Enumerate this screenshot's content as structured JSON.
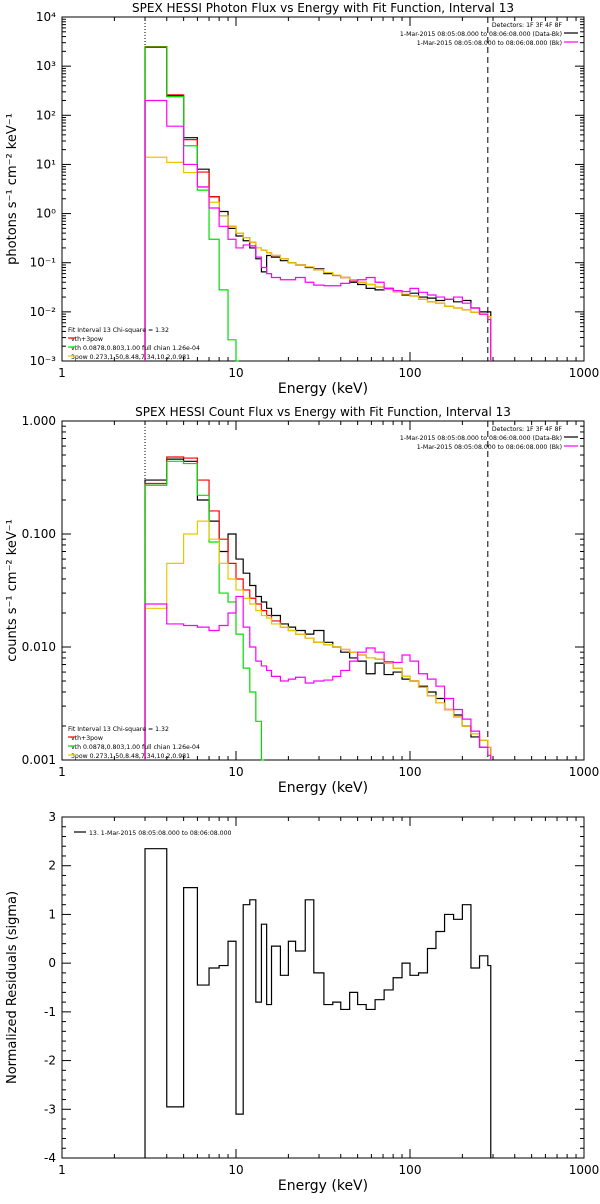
{
  "colors": {
    "observed": "#000000",
    "total_fit": "#ff0000",
    "thermal": "#00dd00",
    "nonthermal": "#e8c800",
    "background": "#ff00ff",
    "axes": "#000000"
  },
  "chart_data": [
    {
      "id": "photon",
      "type": "line",
      "step": true,
      "title": "SPEX HESSI Photon Flux vs Energy with Fit Function, Interval 13",
      "xlabel": "Energy (keV)",
      "ylabel": "photons s⁻¹ cm⁻² keV⁻¹",
      "xscale": "log",
      "yscale": "log",
      "xlim": [
        1,
        1000
      ],
      "ylim": [
        0.001,
        10000
      ],
      "xticks": [
        {
          "v": 1,
          "label": "1"
        },
        {
          "v": 10,
          "label": "10"
        },
        {
          "v": 100,
          "label": "100"
        },
        {
          "v": 1000,
          "label": "1000"
        }
      ],
      "yticks": [
        {
          "v": 0.001,
          "label": "10⁻³"
        },
        {
          "v": 0.01,
          "label": "10⁻²"
        },
        {
          "v": 0.1,
          "label": "10⁻¹"
        },
        {
          "v": 1,
          "label": "10⁰"
        },
        {
          "v": 10,
          "label": "10¹"
        },
        {
          "v": 100,
          "label": "10²"
        },
        {
          "v": 1000,
          "label": "10³"
        },
        {
          "v": 10000,
          "label": "10⁴"
        }
      ],
      "vlines": [
        {
          "x": 3,
          "style": "dotted"
        },
        {
          "x": 280,
          "style": "dashed"
        }
      ],
      "legend_topright": [
        "Detectors: 1F 3F 4F 8F",
        "1-Mar-2015 08:05:08.000 to 08:06:08.000 (Data-Bk)",
        "1-Mar-2015 08:05:08.000 to 08:06:08.000 (Bk)"
      ],
      "legend_topright_keys": [
        "",
        "observed",
        "background"
      ],
      "legend_bottomleft": [
        "Fit Interval 13   Chi-square = 1.32",
        "vth+3pow",
        "vth 0.0878,0.803,1.00  full chian 1.26e-04",
        "3pow 0.273,1.50,8.48,7.34,10.2,0.981"
      ],
      "legend_bottomleft_keys": [
        "",
        "total_fit",
        "thermal",
        "nonthermal"
      ],
      "series": [
        {
          "key": "observed",
          "x": [
            3,
            4,
            5,
            6,
            7,
            8,
            9,
            10,
            11,
            12,
            13,
            14,
            15,
            16,
            18,
            20,
            22,
            25,
            28,
            32,
            36,
            40,
            45,
            50,
            56,
            63,
            71,
            80,
            90,
            100,
            112,
            126,
            141,
            158,
            178,
            200,
            224,
            251,
            280
          ],
          "y": [
            2400,
            250,
            35,
            8,
            2.2,
            1.1,
            0.5,
            0.35,
            0.28,
            0.2,
            0.12,
            0.065,
            0.14,
            0.13,
            0.11,
            0.1,
            0.09,
            0.08,
            0.075,
            0.06,
            0.055,
            0.05,
            0.04,
            0.036,
            0.03,
            0.028,
            0.03,
            0.026,
            0.022,
            0.024,
            0.02,
            0.019,
            0.017,
            0.018,
            0.016,
            0.017,
            0.012,
            0.01,
            0.01
          ]
        },
        {
          "key": "total_fit",
          "x": [
            3,
            4,
            5,
            6,
            7,
            8,
            9,
            10,
            11,
            12,
            13,
            14,
            15,
            16,
            18,
            20,
            22,
            25,
            28,
            32,
            36,
            40,
            45,
            50,
            56,
            63,
            71,
            80,
            90,
            100,
            112,
            126,
            141,
            158,
            178,
            200,
            224,
            251,
            280
          ],
          "y": [
            2500,
            260,
            32,
            7,
            2.2,
            0.9,
            0.55,
            0.4,
            0.32,
            0.26,
            0.2,
            0.18,
            0.16,
            0.14,
            0.12,
            0.1,
            0.09,
            0.082,
            0.072,
            0.063,
            0.056,
            0.05,
            0.045,
            0.04,
            0.036,
            0.032,
            0.029,
            0.026,
            0.023,
            0.021,
            0.018,
            0.016,
            0.015,
            0.013,
            0.012,
            0.011,
            0.0098,
            0.009,
            0.008
          ]
        },
        {
          "key": "thermal",
          "x": [
            3,
            4,
            5,
            6,
            7,
            8,
            9,
            10
          ],
          "y": [
            2450,
            240,
            24,
            3,
            0.3,
            0.028,
            0.0027,
            0.001
          ]
        },
        {
          "key": "nonthermal",
          "x": [
            3,
            4,
            5,
            6,
            7,
            8,
            9,
            10,
            11,
            12,
            13,
            14,
            15,
            16,
            18,
            20,
            22,
            25,
            28,
            32,
            36,
            40,
            45,
            50,
            56,
            63,
            71,
            80,
            90,
            100,
            112,
            126,
            141,
            158,
            178,
            200,
            224,
            251,
            280
          ],
          "y": [
            14,
            11,
            6.8,
            3.4,
            1.7,
            0.9,
            0.55,
            0.4,
            0.32,
            0.26,
            0.2,
            0.18,
            0.16,
            0.14,
            0.12,
            0.1,
            0.09,
            0.082,
            0.072,
            0.063,
            0.056,
            0.05,
            0.045,
            0.04,
            0.036,
            0.032,
            0.029,
            0.026,
            0.023,
            0.021,
            0.018,
            0.016,
            0.015,
            0.013,
            0.012,
            0.011,
            0.0098,
            0.009,
            0.008
          ]
        },
        {
          "key": "background",
          "x": [
            3,
            4,
            5,
            6,
            7,
            8,
            9,
            10,
            11,
            12,
            13,
            14,
            15,
            16,
            18,
            20,
            22,
            25,
            28,
            32,
            36,
            40,
            45,
            50,
            56,
            63,
            71,
            80,
            90,
            100,
            112,
            126,
            141,
            158,
            178,
            200,
            224,
            251,
            280
          ],
          "y": [
            200,
            60,
            10,
            3.5,
            1.3,
            0.55,
            0.3,
            0.2,
            0.23,
            0.22,
            0.13,
            0.08,
            0.06,
            0.05,
            0.045,
            0.045,
            0.05,
            0.04,
            0.035,
            0.034,
            0.034,
            0.038,
            0.042,
            0.045,
            0.05,
            0.04,
            0.03,
            0.027,
            0.026,
            0.03,
            0.025,
            0.022,
            0.02,
            0.018,
            0.02,
            0.015,
            0.012,
            0.009,
            0.007
          ]
        }
      ]
    },
    {
      "id": "count",
      "type": "line",
      "step": true,
      "title": "SPEX HESSI Count Flux vs Energy with Fit Function, Interval 13",
      "xlabel": "Energy (keV)",
      "ylabel": "counts s⁻¹ cm⁻² keV⁻¹",
      "xscale": "log",
      "yscale": "log",
      "xlim": [
        1,
        1000
      ],
      "ylim": [
        0.001,
        1
      ],
      "xticks": [
        {
          "v": 1,
          "label": "1"
        },
        {
          "v": 10,
          "label": "10"
        },
        {
          "v": 100,
          "label": "100"
        },
        {
          "v": 1000,
          "label": "1000"
        }
      ],
      "yticks": [
        {
          "v": 0.001,
          "label": "0.001"
        },
        {
          "v": 0.01,
          "label": "0.010"
        },
        {
          "v": 0.1,
          "label": "0.100"
        },
        {
          "v": 1,
          "label": "1.000"
        }
      ],
      "vlines": [
        {
          "x": 3,
          "style": "dotted"
        },
        {
          "x": 280,
          "style": "dashed"
        }
      ],
      "legend_topright": [
        "Detectors: 1F 3F 4F 8F",
        "1-Mar-2015 08:05:08.000 to 08:06:08.000 (Data-Bk)",
        "1-Mar-2015 08:05:08.000 to 08:06:08.000 (Bk)"
      ],
      "legend_topright_keys": [
        "",
        "observed",
        "background"
      ],
      "legend_bottomleft": [
        "Fit Interval 13   Chi-square = 1.32",
        "vth+3pow",
        "vth 0.0878,0.803,1.00  full chian 1.26e-04",
        "3pow 0.273,1.50,8.48,7.34,10.2,0.981"
      ],
      "legend_bottomleft_keys": [
        "",
        "total_fit",
        "thermal",
        "nonthermal"
      ],
      "series": [
        {
          "key": "observed",
          "x": [
            3,
            4,
            5,
            6,
            7,
            8,
            9,
            10,
            11,
            12,
            13,
            14,
            15,
            16,
            18,
            20,
            22,
            25,
            28,
            32,
            36,
            40,
            45,
            50,
            56,
            63,
            71,
            80,
            90,
            100,
            112,
            126,
            141,
            158,
            178,
            200,
            224,
            251,
            280
          ],
          "y": [
            0.3,
            0.46,
            0.44,
            0.2,
            0.13,
            0.07,
            0.1,
            0.06,
            0.045,
            0.035,
            0.028,
            0.025,
            0.022,
            0.019,
            0.016,
            0.015,
            0.014,
            0.013,
            0.014,
            0.011,
            0.01,
            0.009,
            0.008,
            0.0075,
            0.0058,
            0.0072,
            0.0057,
            0.006,
            0.0052,
            0.005,
            0.0045,
            0.004,
            0.0035,
            0.0028,
            0.0025,
            0.002,
            0.0016,
            0.0013,
            0.0013
          ]
        },
        {
          "key": "total_fit",
          "x": [
            3,
            4,
            5,
            6,
            7,
            8,
            9,
            10,
            11,
            12,
            13,
            14,
            15,
            16,
            18,
            20,
            22,
            25,
            28,
            32,
            36,
            40,
            45,
            50,
            56,
            63,
            71,
            80,
            90,
            100,
            112,
            126,
            141,
            158,
            178,
            200,
            224,
            251,
            280
          ],
          "y": [
            0.28,
            0.48,
            0.47,
            0.3,
            0.16,
            0.09,
            0.055,
            0.04,
            0.032,
            0.027,
            0.024,
            0.021,
            0.019,
            0.017,
            0.015,
            0.014,
            0.013,
            0.012,
            0.011,
            0.0105,
            0.01,
            0.0095,
            0.009,
            0.0085,
            0.008,
            0.0078,
            0.0072,
            0.0065,
            0.0055,
            0.005,
            0.0044,
            0.0037,
            0.0032,
            0.0028,
            0.0024,
            0.002,
            0.0017,
            0.0015,
            0.0013
          ]
        },
        {
          "key": "thermal",
          "x": [
            3,
            4,
            5,
            6,
            7,
            8,
            9,
            10,
            11,
            12,
            13,
            14
          ],
          "y": [
            0.27,
            0.44,
            0.42,
            0.22,
            0.085,
            0.03,
            0.025,
            0.013,
            0.0065,
            0.004,
            0.0022,
            0.001
          ]
        },
        {
          "key": "nonthermal",
          "x": [
            3,
            4,
            5,
            6,
            7,
            8,
            9,
            10,
            11,
            12,
            13,
            14,
            15,
            16,
            18,
            20,
            22,
            25,
            28,
            32,
            36,
            40,
            45,
            50,
            56,
            63,
            71,
            80,
            90,
            100,
            112,
            126,
            141,
            158,
            178,
            200,
            224,
            251,
            280
          ],
          "y": [
            0.022,
            0.055,
            0.1,
            0.13,
            0.09,
            0.055,
            0.04,
            0.032,
            0.027,
            0.024,
            0.021,
            0.019,
            0.018,
            0.016,
            0.015,
            0.014,
            0.013,
            0.012,
            0.011,
            0.0105,
            0.01,
            0.0095,
            0.009,
            0.0085,
            0.008,
            0.0078,
            0.0072,
            0.0065,
            0.0055,
            0.005,
            0.0044,
            0.0037,
            0.0032,
            0.0028,
            0.0024,
            0.002,
            0.0017,
            0.0015,
            0.0013
          ]
        },
        {
          "key": "background",
          "x": [
            3,
            4,
            5,
            6,
            7,
            8,
            9,
            10,
            11,
            12,
            13,
            14,
            15,
            16,
            18,
            20,
            22,
            25,
            28,
            32,
            36,
            40,
            45,
            50,
            56,
            63,
            71,
            80,
            90,
            100,
            112,
            126,
            141,
            158,
            178,
            200,
            224,
            251,
            280
          ],
          "y": [
            0.024,
            0.016,
            0.0155,
            0.015,
            0.014,
            0.0155,
            0.02,
            0.028,
            0.015,
            0.01,
            0.0075,
            0.0068,
            0.0062,
            0.0055,
            0.005,
            0.0052,
            0.0054,
            0.0048,
            0.005,
            0.0051,
            0.0055,
            0.0062,
            0.0075,
            0.009,
            0.0098,
            0.009,
            0.0074,
            0.0073,
            0.0085,
            0.0075,
            0.0058,
            0.0052,
            0.0045,
            0.0035,
            0.0028,
            0.0023,
            0.0018,
            0.0013,
            0.0011
          ]
        }
      ]
    },
    {
      "id": "residuals",
      "type": "line",
      "step": true,
      "title": "",
      "xlabel": "Energy (keV)",
      "ylabel": "Normalized Residuals (sigma)",
      "xscale": "log",
      "yscale": "linear",
      "xlim": [
        1,
        1000
      ],
      "ylim": [
        -4,
        3
      ],
      "xticks": [
        {
          "v": 1,
          "label": "1"
        },
        {
          "v": 10,
          "label": "10"
        },
        {
          "v": 100,
          "label": "100"
        },
        {
          "v": 1000,
          "label": "1000"
        }
      ],
      "yticks": [
        {
          "v": -4,
          "label": "-4"
        },
        {
          "v": -3,
          "label": "-3"
        },
        {
          "v": -2,
          "label": "-2"
        },
        {
          "v": -1,
          "label": "-1"
        },
        {
          "v": 0,
          "label": "0"
        },
        {
          "v": 1,
          "label": "1"
        },
        {
          "v": 2,
          "label": "2"
        },
        {
          "v": 3,
          "label": "3"
        }
      ],
      "vlines": [],
      "legend_topleft": [
        "13.  1-Mar-2015 08:05:08.000 to 08:06:08.000"
      ],
      "legend_topleft_keys": [
        "observed"
      ],
      "series": [
        {
          "key": "observed",
          "x": [
            3,
            4,
            5,
            6,
            7,
            8,
            9,
            10,
            11,
            12,
            13,
            14,
            15,
            16,
            18,
            20,
            22,
            25,
            28,
            32,
            36,
            40,
            45,
            50,
            56,
            63,
            71,
            80,
            90,
            100,
            112,
            126,
            141,
            158,
            178,
            200,
            224,
            251,
            280
          ],
          "y": [
            2.35,
            -2.95,
            1.55,
            -0.45,
            -0.1,
            -0.05,
            0.45,
            -3.1,
            1.2,
            1.3,
            -0.8,
            0.8,
            -0.85,
            0.35,
            -0.25,
            0.45,
            0.25,
            1.3,
            -0.2,
            -0.85,
            -0.8,
            -0.95,
            -0.6,
            -0.85,
            -0.95,
            -0.75,
            -0.55,
            -0.3,
            0.0,
            -0.25,
            -0.2,
            0.3,
            0.65,
            1.0,
            0.9,
            1.2,
            -0.1,
            0.15,
            -0.05
          ]
        }
      ]
    }
  ]
}
